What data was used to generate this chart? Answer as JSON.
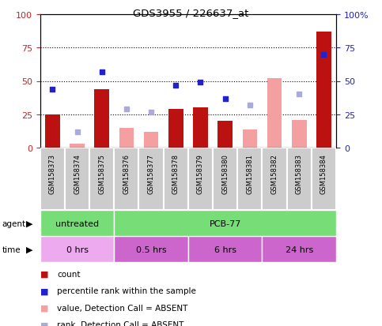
{
  "title": "GDS3955 / 226637_at",
  "samples": [
    "GSM158373",
    "GSM158374",
    "GSM158375",
    "GSM158376",
    "GSM158377",
    "GSM158378",
    "GSM158379",
    "GSM158380",
    "GSM158381",
    "GSM158382",
    "GSM158383",
    "GSM158384"
  ],
  "count_values": [
    25,
    0,
    44,
    0,
    0,
    29,
    30,
    20,
    0,
    0,
    0,
    87
  ],
  "percentile_rank": [
    44,
    null,
    57,
    null,
    null,
    47,
    49,
    37,
    null,
    null,
    null,
    70
  ],
  "absent_value": [
    null,
    3,
    null,
    15,
    12,
    null,
    null,
    null,
    14,
    52,
    21,
    null
  ],
  "absent_rank": [
    null,
    12,
    null,
    29,
    27,
    null,
    null,
    null,
    32,
    null,
    40,
    null
  ],
  "ylim_left": [
    0,
    100
  ],
  "ylim_right": [
    0,
    100
  ],
  "yticks_left": [
    0,
    25,
    50,
    75,
    100
  ],
  "yticks_right": [
    0,
    25,
    50,
    75,
    100
  ],
  "ytick_labels_right": [
    "0",
    "25",
    "50",
    "75",
    "100%"
  ],
  "bar_color_count": "#bb1111",
  "bar_color_absent_value": "#f4a0a0",
  "dot_color_rank": "#2222cc",
  "dot_color_absent_rank": "#aaaadd",
  "left_tick_color": "#cc2222",
  "right_tick_color": "#2222cc",
  "agent_green": "#77dd77",
  "time_light": "#eeaaee",
  "time_dark": "#cc66cc",
  "sample_box_color": "#cccccc",
  "legend_items": [
    {
      "label": "count",
      "color": "#bb1111"
    },
    {
      "label": "percentile rank within the sample",
      "color": "#2222cc"
    },
    {
      "label": "value, Detection Call = ABSENT",
      "color": "#f4a0a0"
    },
    {
      "label": "rank, Detection Call = ABSENT",
      "color": "#aaaadd"
    }
  ]
}
